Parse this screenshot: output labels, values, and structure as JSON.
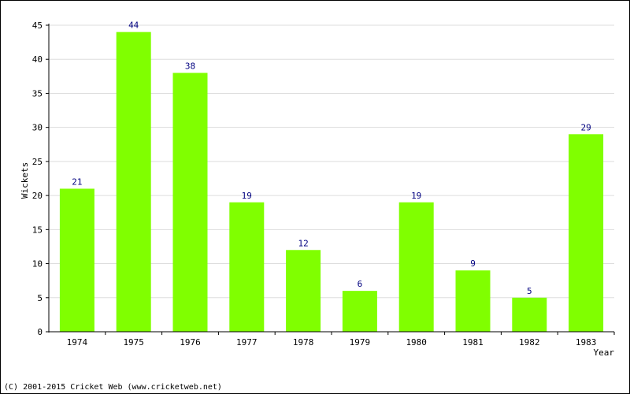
{
  "chart_data": {
    "type": "bar",
    "categories": [
      "1974",
      "1975",
      "1976",
      "1977",
      "1978",
      "1979",
      "1980",
      "1981",
      "1982",
      "1983"
    ],
    "values": [
      21,
      44,
      38,
      19,
      12,
      6,
      19,
      9,
      5,
      29
    ],
    "title": "",
    "xlabel": "Year",
    "ylabel": "Wickets",
    "ylim": [
      0,
      45
    ],
    "yticks": [
      0,
      5,
      10,
      15,
      20,
      25,
      30,
      35,
      40,
      45
    ],
    "grid": true,
    "legend": "none",
    "data_labels": true,
    "colors": {
      "bar": "#80FF00",
      "data_label": "#000080",
      "grid": "#DDDDDD"
    }
  },
  "footer": "(C) 2001-2015 Cricket Web (www.cricketweb.net)"
}
